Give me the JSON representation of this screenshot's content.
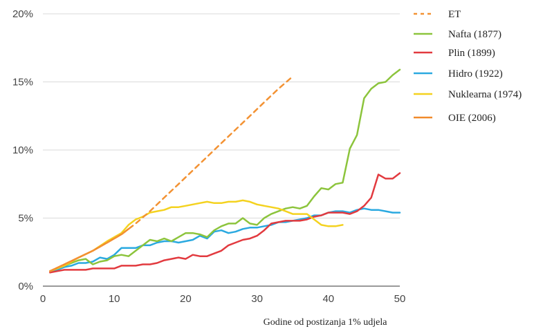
{
  "chart_data": {
    "type": "line",
    "xlabel": "Godine od postizanja 1% udjela",
    "ylabel": "",
    "title": "",
    "xlim": [
      0,
      50
    ],
    "ylim": [
      0,
      20
    ],
    "x_ticks": [
      0,
      10,
      20,
      30,
      40,
      50
    ],
    "x_tick_labels": [
      "0",
      "10",
      "20",
      "30",
      "40",
      "50"
    ],
    "y_ticks": [
      0,
      5,
      10,
      15,
      20
    ],
    "y_tick_labels": [
      "0%",
      "5%",
      "10%",
      "15%",
      "20%"
    ],
    "grid": "horizontal",
    "legend_position": "right",
    "series": [
      {
        "name": "ET",
        "color": "#f39233",
        "dashed": true,
        "x": [
          1,
          3,
          5,
          7,
          9,
          11,
          13,
          15,
          17,
          19,
          21,
          23,
          25,
          27,
          29,
          31,
          33,
          35
        ],
        "y": [
          1.1,
          1.6,
          2.1,
          2.6,
          3.2,
          3.8,
          4.6,
          5.5,
          6.5,
          7.5,
          8.5,
          9.5,
          10.5,
          11.5,
          12.5,
          13.5,
          14.5,
          15.4
        ]
      },
      {
        "name": "Nafta (1877)",
        "color": "#8cc43c",
        "dashed": false,
        "x": [
          1,
          3,
          5,
          6,
          7,
          8,
          9,
          10,
          11,
          12,
          13,
          14,
          15,
          16,
          17,
          18,
          19,
          20,
          21,
          22,
          23,
          24,
          25,
          26,
          27,
          28,
          29,
          30,
          31,
          32,
          33,
          34,
          35,
          36,
          37,
          38,
          39,
          40,
          41,
          42,
          43,
          44,
          45,
          46,
          47,
          48,
          49,
          50
        ],
        "y": [
          1.1,
          1.5,
          1.9,
          2.0,
          1.6,
          1.8,
          1.9,
          2.2,
          2.3,
          2.2,
          2.6,
          3.0,
          3.4,
          3.3,
          3.5,
          3.3,
          3.6,
          3.9,
          3.9,
          3.8,
          3.6,
          4.1,
          4.4,
          4.6,
          4.6,
          5.0,
          4.6,
          4.5,
          5.0,
          5.3,
          5.5,
          5.7,
          5.8,
          5.7,
          5.9,
          6.6,
          7.2,
          7.1,
          7.5,
          7.6,
          10.1,
          11.1,
          13.8,
          14.5,
          14.9,
          15.0,
          15.5,
          15.9
        ]
      },
      {
        "name": "Plin (1899)",
        "color": "#e23a3f",
        "dashed": false,
        "x": [
          1,
          2,
          3,
          4,
          5,
          6,
          7,
          8,
          9,
          10,
          11,
          12,
          13,
          14,
          15,
          16,
          17,
          18,
          19,
          20,
          21,
          22,
          23,
          24,
          25,
          26,
          27,
          28,
          29,
          30,
          31,
          32,
          33,
          34,
          35,
          36,
          37,
          38,
          39,
          40,
          41,
          42,
          43,
          44,
          45,
          46,
          47,
          48,
          49,
          50
        ],
        "y": [
          1.0,
          1.1,
          1.2,
          1.2,
          1.2,
          1.2,
          1.3,
          1.3,
          1.3,
          1.3,
          1.5,
          1.5,
          1.5,
          1.6,
          1.6,
          1.7,
          1.9,
          2.0,
          2.1,
          2.0,
          2.3,
          2.2,
          2.2,
          2.4,
          2.6,
          3.0,
          3.2,
          3.4,
          3.5,
          3.7,
          4.1,
          4.6,
          4.7,
          4.8,
          4.8,
          4.8,
          4.9,
          5.1,
          5.2,
          5.4,
          5.4,
          5.4,
          5.3,
          5.5,
          5.9,
          6.5,
          8.2,
          7.9,
          7.9,
          8.3
        ]
      },
      {
        "name": "Hidro (1922)",
        "color": "#2aa9e0",
        "dashed": false,
        "x": [
          1,
          2,
          3,
          4,
          5,
          6,
          7,
          8,
          9,
          10,
          11,
          12,
          13,
          14,
          15,
          16,
          17,
          18,
          19,
          20,
          21,
          22,
          23,
          24,
          25,
          26,
          27,
          28,
          29,
          30,
          31,
          32,
          33,
          34,
          35,
          36,
          37,
          38,
          39,
          40,
          41,
          42,
          43,
          44,
          45,
          46,
          47,
          48,
          49,
          50
        ],
        "y": [
          1.1,
          1.2,
          1.4,
          1.5,
          1.7,
          1.7,
          1.8,
          2.1,
          2.0,
          2.3,
          2.8,
          2.8,
          2.8,
          3.0,
          3.0,
          3.2,
          3.3,
          3.3,
          3.2,
          3.3,
          3.4,
          3.7,
          3.5,
          4.0,
          4.1,
          3.9,
          4.0,
          4.2,
          4.3,
          4.3,
          4.4,
          4.5,
          4.7,
          4.7,
          4.8,
          4.9,
          5.0,
          5.2,
          5.2,
          5.4,
          5.5,
          5.5,
          5.4,
          5.6,
          5.7,
          5.6,
          5.6,
          5.5,
          5.4,
          5.4
        ]
      },
      {
        "name": "Nuklearna (1974)",
        "color": "#f4d21f",
        "dashed": false,
        "x": [
          1,
          3,
          5,
          7,
          9,
          11,
          12,
          13,
          14,
          15,
          16,
          17,
          18,
          19,
          20,
          21,
          22,
          23,
          24,
          25,
          26,
          27,
          28,
          29,
          30,
          31,
          32,
          33,
          34,
          35,
          36,
          37,
          38,
          39,
          40,
          41,
          42
        ],
        "y": [
          1.1,
          1.5,
          2.1,
          2.6,
          3.3,
          3.9,
          4.5,
          4.9,
          5.1,
          5.4,
          5.5,
          5.6,
          5.8,
          5.8,
          5.9,
          6.0,
          6.1,
          6.2,
          6.1,
          6.1,
          6.2,
          6.2,
          6.3,
          6.2,
          6.0,
          5.9,
          5.8,
          5.7,
          5.5,
          5.3,
          5.3,
          5.3,
          4.9,
          4.5,
          4.4,
          4.4,
          4.5
        ]
      },
      {
        "name": "OIE (2006)",
        "color": "#f18a2b",
        "dashed": false,
        "x": [
          1,
          3,
          5,
          7,
          9,
          11,
          12
        ],
        "y": [
          1.1,
          1.6,
          2.1,
          2.6,
          3.2,
          3.8,
          4.2
        ]
      }
    ]
  }
}
